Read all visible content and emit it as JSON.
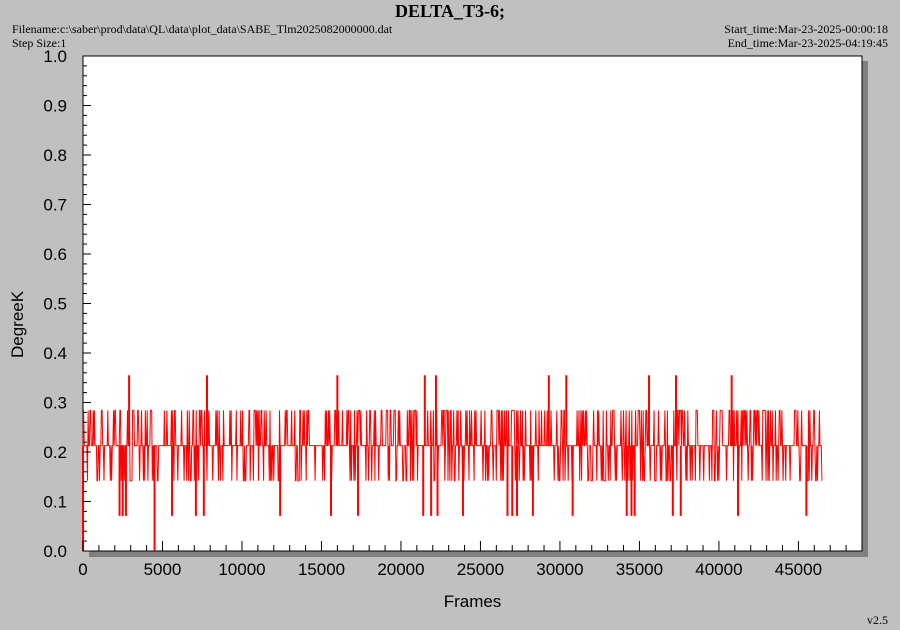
{
  "header": {
    "title": "DELTA_T3-6;",
    "filename": "Filename:c:\\saber\\prod\\data\\QL\\data\\plot_data\\SABE_Tlm2025082000000.dat",
    "step_size": "Step Size:1",
    "start_time": "Start_time:Mar-23-2025-00:00:18",
    "end_time": "End_time:Mar-23-2025-04:19:45"
  },
  "version": "v2.5",
  "colors": {
    "series": "#ff0000",
    "plot_bg": "#ffffff",
    "frame_bg": "#c0c0c0",
    "shadow": "#808080"
  },
  "chart_data": {
    "type": "line",
    "title": "DELTA_T3-6;",
    "xlabel": "Frames",
    "ylabel": "DegreeK",
    "xlim": [
      0,
      49000
    ],
    "ylim": [
      0,
      1.0
    ],
    "x_ticks": [
      0,
      5000,
      10000,
      15000,
      20000,
      25000,
      30000,
      35000,
      40000,
      45000
    ],
    "y_ticks": [
      "0.0",
      "0.1",
      "0.2",
      "0.3",
      "0.4",
      "0.5",
      "0.6",
      "0.7",
      "0.8",
      "0.9",
      "1.0"
    ],
    "grid": false,
    "series": [
      {
        "x_range": [
          0,
          46500
        ],
        "base_levels": [
          0.142,
          0.213,
          0.284
        ],
        "spikes": [
          {
            "x": 0,
            "y": 0.0
          },
          {
            "x": 2900,
            "y": 0.355
          },
          {
            "x": 4500,
            "y": 0.0
          },
          {
            "x": 7800,
            "y": 0.355
          },
          {
            "x": 16000,
            "y": 0.355
          },
          {
            "x": 21500,
            "y": 0.355
          },
          {
            "x": 22200,
            "y": 0.355
          },
          {
            "x": 29300,
            "y": 0.355
          },
          {
            "x": 30400,
            "y": 0.355
          },
          {
            "x": 35600,
            "y": 0.355
          },
          {
            "x": 37300,
            "y": 0.355
          },
          {
            "x": 40800,
            "y": 0.355
          }
        ],
        "dips": [
          {
            "x": 2300,
            "y": 0.071
          },
          {
            "x": 2500,
            "y": 0.071
          },
          {
            "x": 2700,
            "y": 0.071
          },
          {
            "x": 5600,
            "y": 0.071
          },
          {
            "x": 7100,
            "y": 0.071
          },
          {
            "x": 7600,
            "y": 0.071
          },
          {
            "x": 12400,
            "y": 0.071
          },
          {
            "x": 15600,
            "y": 0.071
          },
          {
            "x": 17300,
            "y": 0.071
          },
          {
            "x": 21400,
            "y": 0.071
          },
          {
            "x": 21900,
            "y": 0.071
          },
          {
            "x": 22300,
            "y": 0.071
          },
          {
            "x": 23900,
            "y": 0.071
          },
          {
            "x": 26700,
            "y": 0.071
          },
          {
            "x": 27000,
            "y": 0.071
          },
          {
            "x": 27300,
            "y": 0.071
          },
          {
            "x": 28300,
            "y": 0.071
          },
          {
            "x": 30800,
            "y": 0.071
          },
          {
            "x": 34200,
            "y": 0.071
          },
          {
            "x": 34500,
            "y": 0.071
          },
          {
            "x": 34700,
            "y": 0.071
          },
          {
            "x": 37100,
            "y": 0.071
          },
          {
            "x": 37600,
            "y": 0.071
          },
          {
            "x": 41200,
            "y": 0.071
          },
          {
            "x": 45500,
            "y": 0.071
          }
        ]
      }
    ]
  }
}
